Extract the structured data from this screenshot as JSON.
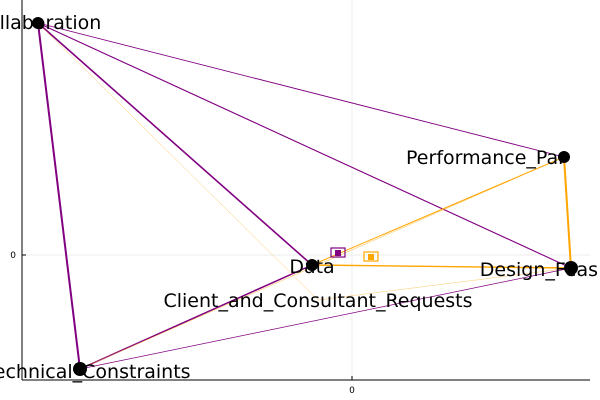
{
  "chart_data": {
    "type": "graph",
    "grid": true,
    "axes": {
      "x_ticks": [
        "0"
      ],
      "y_ticks": [
        "0"
      ]
    },
    "nodes": [
      {
        "id": "collab",
        "label": "Collaboration"
      },
      {
        "id": "perf",
        "label": "Performance_Par"
      },
      {
        "id": "data",
        "label": "Data"
      },
      {
        "id": "design",
        "label": "Design_Feas"
      },
      {
        "id": "clients",
        "label": "Client_and_Consultant_Requests"
      },
      {
        "id": "tech",
        "label": "Technical_Constraints"
      }
    ],
    "edges": [
      {
        "from": "collab",
        "to": "tech",
        "color": "purple",
        "weight": 2.0
      },
      {
        "from": "collab",
        "to": "data",
        "color": "purple",
        "weight": 1.6
      },
      {
        "from": "collab",
        "to": "design",
        "color": "purple",
        "weight": 1.1
      },
      {
        "from": "collab",
        "to": "perf",
        "color": "purple",
        "weight": 0.9
      },
      {
        "from": "tech",
        "to": "data",
        "color": "purple",
        "weight": 1.5
      },
      {
        "from": "tech",
        "to": "design",
        "color": "purple",
        "weight": 0.7
      },
      {
        "from": "tech",
        "to": "perf",
        "color": "orange",
        "weight": 0.4
      },
      {
        "from": "perf",
        "to": "design",
        "color": "orange",
        "weight": 2.0
      },
      {
        "from": "data",
        "to": "perf",
        "color": "orange",
        "weight": 1.0
      },
      {
        "from": "data",
        "to": "design",
        "color": "orange",
        "weight": 1.4
      },
      {
        "from": "collab",
        "to": "clients",
        "color": "orange",
        "weight": 0.3
      },
      {
        "from": "clients",
        "to": "design",
        "color": "orange",
        "weight": 0.3
      }
    ],
    "legend_markers": [
      {
        "color": "purple",
        "label": ""
      },
      {
        "color": "orange",
        "label": ""
      }
    ]
  },
  "colors": {
    "purple": "#800080",
    "orange": "#ffa500",
    "node": "#000000"
  }
}
